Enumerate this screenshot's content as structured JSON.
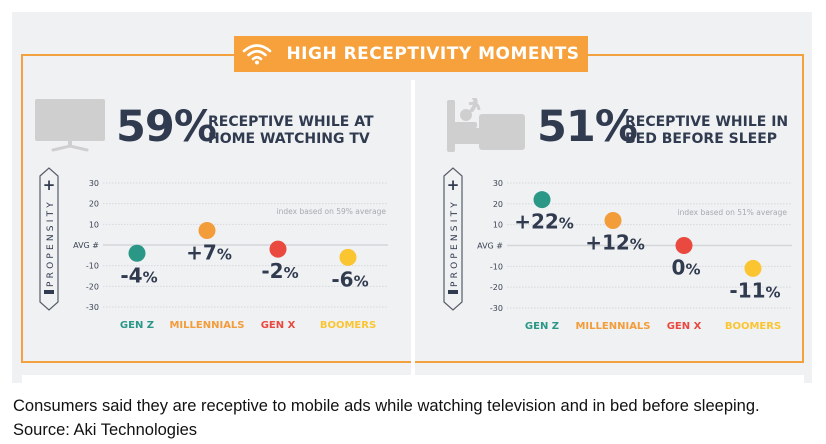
{
  "banner": {
    "title": "HIGH RECEPTIVITY MOMENTS",
    "icon": "wifi-icon"
  },
  "panels": [
    {
      "percent": "59%",
      "desc_line1": "RECEPTIVE WHILE AT",
      "desc_line2": "HOME WATCHING TV",
      "icon": "tv-icon"
    },
    {
      "percent": "51%",
      "desc_line1": "RECEPTIVE WHILE IN",
      "desc_line2": "BED BEFORE SLEEP",
      "icon": "bed-icon"
    }
  ],
  "colors": {
    "accent": "#f6a13c",
    "text_dark": "#313b4f",
    "gen_z": "#2a9787",
    "millennials": "#f39c3a",
    "gen_x": "#e9493f",
    "boomers": "#fbc531"
  },
  "chart_data": [
    {
      "type": "scatter",
      "title": "59% RECEPTIVE WHILE AT HOME WATCHING TV",
      "ylabel": "PROPENSITY",
      "ylabel_plus": "+",
      "ylabel_minus": "−",
      "annotation": "index based on 59% average",
      "categories": [
        "GEN Z",
        "MILLENNIALS",
        "GEN X",
        "BOOMERS"
      ],
      "values": [
        -4,
        7,
        -2,
        -6
      ],
      "labels": [
        "-4%",
        "+7%",
        "-2%",
        "-6%"
      ],
      "yticks": [
        "30",
        "20",
        "10",
        "AVG #",
        "-10",
        "-20",
        "-30"
      ],
      "ytick_values": [
        30,
        20,
        10,
        0,
        -10,
        -20,
        -30
      ],
      "ylim": [
        -30,
        30
      ],
      "grid": true
    },
    {
      "type": "scatter",
      "title": "51% RECEPTIVE WHILE IN BED BEFORE SLEEP",
      "ylabel": "PROPENSITY",
      "ylabel_plus": "+",
      "ylabel_minus": "−",
      "annotation": "index based on 51% average",
      "categories": [
        "GEN Z",
        "MILLENNIALS",
        "GEN X",
        "BOOMERS"
      ],
      "values": [
        22,
        12,
        0,
        -11
      ],
      "labels": [
        "+22%",
        "+12%",
        "0%",
        "-11%"
      ],
      "yticks": [
        "30",
        "20",
        "10",
        "AVG #",
        "-10",
        "-20",
        "-30"
      ],
      "ytick_values": [
        30,
        20,
        10,
        0,
        -10,
        -20,
        -30
      ],
      "ylim": [
        -30,
        30
      ],
      "grid": true
    }
  ],
  "caption": "Consumers said they are receptive to mobile ads while watching television and in bed before sleeping. Source: Aki Technologies"
}
